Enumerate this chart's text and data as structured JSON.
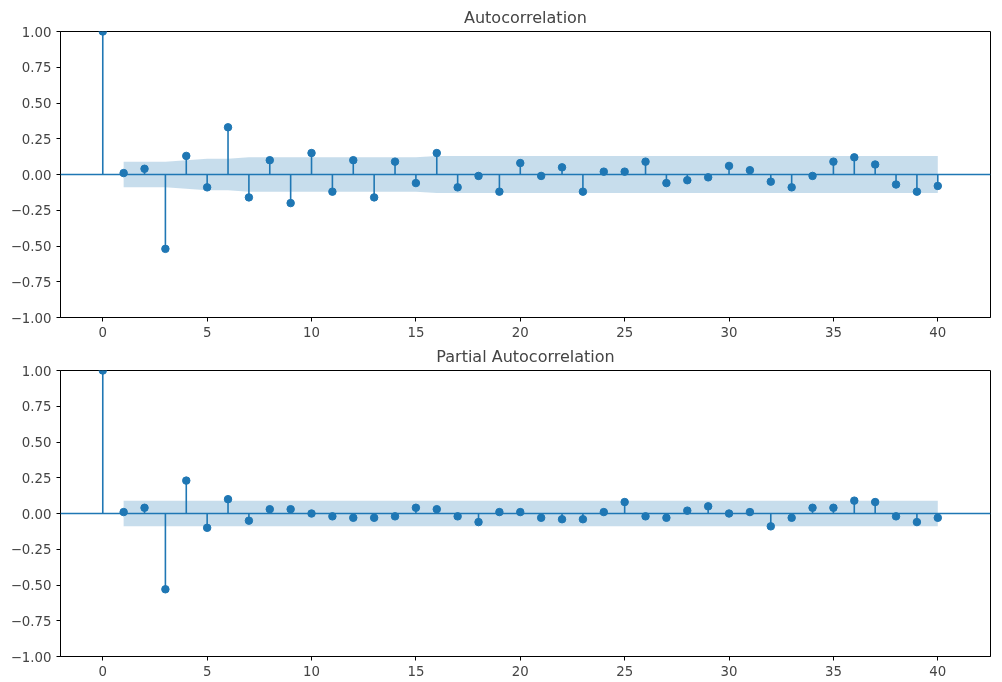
{
  "chart_data": [
    {
      "type": "lollipop",
      "title": "Autocorrelation",
      "x": [
        0,
        1,
        2,
        3,
        4,
        5,
        6,
        7,
        8,
        9,
        10,
        11,
        12,
        13,
        14,
        15,
        16,
        17,
        18,
        19,
        20,
        21,
        22,
        23,
        24,
        25,
        26,
        27,
        28,
        29,
        30,
        31,
        32,
        33,
        34,
        35,
        36,
        37,
        38,
        39,
        40
      ],
      "series": [
        {
          "color": "#1f77b4",
          "values": [
            1.0,
            0.01,
            0.04,
            -0.52,
            0.13,
            -0.09,
            0.33,
            -0.16,
            0.1,
            -0.2,
            0.15,
            -0.12,
            0.1,
            -0.16,
            0.09,
            -0.06,
            0.15,
            -0.09,
            -0.01,
            -0.12,
            0.08,
            -0.01,
            0.05,
            -0.12,
            0.02,
            0.02,
            0.09,
            -0.06,
            -0.04,
            -0.02,
            0.06,
            0.03,
            -0.05,
            -0.09,
            -0.01,
            0.09,
            0.12,
            0.07,
            -0.07,
            -0.12,
            -0.08
          ],
          "upper": [
            null,
            0.09,
            0.09,
            0.09,
            0.1,
            0.11,
            0.11,
            0.12,
            0.12,
            0.12,
            0.12,
            0.12,
            0.12,
            0.12,
            0.12,
            0.12,
            0.13,
            0.13,
            0.13,
            0.13,
            0.13,
            0.13,
            0.13,
            0.13,
            0.13,
            0.13,
            0.13,
            0.13,
            0.13,
            0.13,
            0.13,
            0.13,
            0.13,
            0.13,
            0.13,
            0.13,
            0.13,
            0.13,
            0.13,
            0.13,
            0.13
          ],
          "lower": [
            null,
            -0.09,
            -0.09,
            -0.09,
            -0.1,
            -0.11,
            -0.11,
            -0.12,
            -0.12,
            -0.12,
            -0.12,
            -0.12,
            -0.12,
            -0.12,
            -0.12,
            -0.12,
            -0.13,
            -0.13,
            -0.13,
            -0.13,
            -0.13,
            -0.13,
            -0.13,
            -0.13,
            -0.13,
            -0.13,
            -0.13,
            -0.13,
            -0.13,
            -0.13,
            -0.13,
            -0.13,
            -0.13,
            -0.13,
            -0.13,
            -0.13,
            -0.13,
            -0.13,
            -0.13,
            -0.13,
            -0.13
          ]
        }
      ],
      "marker": "circle",
      "grid": false,
      "ref_lines": [
        {
          "axis": "y",
          "value": 0,
          "color": "#1f77b4"
        }
      ],
      "xlim": [
        -2.025,
        42.525
      ],
      "xticks": [
        0,
        5,
        10,
        15,
        20,
        25,
        30,
        35,
        40
      ],
      "ylim": [
        -1.0,
        1.0
      ],
      "yticks": [
        {
          "value": -1,
          "label": "−1.00"
        },
        {
          "value": -0.75,
          "label": "−0.75"
        },
        {
          "value": -0.5,
          "label": "−0.50"
        },
        {
          "value": -0.25,
          "label": "−0.25"
        },
        {
          "value": 0,
          "label": "0.00"
        },
        {
          "value": 0.25,
          "label": "0.25"
        },
        {
          "value": 0.5,
          "label": "0.50"
        },
        {
          "value": 0.75,
          "label": "0.75"
        },
        {
          "value": 1,
          "label": "1.00"
        }
      ]
    },
    {
      "type": "lollipop",
      "title": "Partial Autocorrelation",
      "x": [
        0,
        1,
        2,
        3,
        4,
        5,
        6,
        7,
        8,
        9,
        10,
        11,
        12,
        13,
        14,
        15,
        16,
        17,
        18,
        19,
        20,
        21,
        22,
        23,
        24,
        25,
        26,
        27,
        28,
        29,
        30,
        31,
        32,
        33,
        34,
        35,
        36,
        37,
        38,
        39,
        40
      ],
      "series": [
        {
          "color": "#1f77b4",
          "values": [
            1.0,
            0.01,
            0.04,
            -0.53,
            0.23,
            -0.1,
            0.1,
            -0.05,
            0.03,
            0.03,
            0.0,
            -0.02,
            -0.03,
            -0.03,
            -0.02,
            0.04,
            0.03,
            -0.02,
            -0.06,
            0.01,
            0.01,
            -0.03,
            -0.04,
            -0.04,
            0.01,
            0.08,
            -0.02,
            -0.03,
            0.02,
            0.05,
            0.0,
            0.01,
            -0.09,
            -0.03,
            0.04,
            0.04,
            0.09,
            0.08,
            -0.02,
            -0.06,
            -0.03
          ],
          "upper": [
            null,
            0.09,
            0.09,
            0.09,
            0.09,
            0.09,
            0.09,
            0.09,
            0.09,
            0.09,
            0.09,
            0.09,
            0.09,
            0.09,
            0.09,
            0.09,
            0.09,
            0.09,
            0.09,
            0.09,
            0.09,
            0.09,
            0.09,
            0.09,
            0.09,
            0.09,
            0.09,
            0.09,
            0.09,
            0.09,
            0.09,
            0.09,
            0.09,
            0.09,
            0.09,
            0.09,
            0.09,
            0.09,
            0.09,
            0.09,
            0.09
          ],
          "lower": [
            null,
            -0.09,
            -0.09,
            -0.09,
            -0.09,
            -0.09,
            -0.09,
            -0.09,
            -0.09,
            -0.09,
            -0.09,
            -0.09,
            -0.09,
            -0.09,
            -0.09,
            -0.09,
            -0.09,
            -0.09,
            -0.09,
            -0.09,
            -0.09,
            -0.09,
            -0.09,
            -0.09,
            -0.09,
            -0.09,
            -0.09,
            -0.09,
            -0.09,
            -0.09,
            -0.09,
            -0.09,
            -0.09,
            -0.09,
            -0.09,
            -0.09,
            -0.09,
            -0.09,
            -0.09,
            -0.09,
            -0.09
          ]
        }
      ],
      "marker": "circle",
      "grid": false,
      "ref_lines": [
        {
          "axis": "y",
          "value": 0,
          "color": "#1f77b4"
        }
      ],
      "xlim": [
        -2.025,
        42.525
      ],
      "xticks": [
        0,
        5,
        10,
        15,
        20,
        25,
        30,
        35,
        40
      ],
      "ylim": [
        -1.0,
        1.0
      ],
      "yticks": [
        {
          "value": -1,
          "label": "−1.00"
        },
        {
          "value": -0.75,
          "label": "−0.75"
        },
        {
          "value": -0.5,
          "label": "−0.50"
        },
        {
          "value": -0.25,
          "label": "−0.25"
        },
        {
          "value": 0,
          "label": "0.00"
        },
        {
          "value": 0.25,
          "label": "0.25"
        },
        {
          "value": 0.5,
          "label": "0.50"
        },
        {
          "value": 0.75,
          "label": "0.75"
        },
        {
          "value": 1,
          "label": "1.00"
        }
      ]
    }
  ]
}
